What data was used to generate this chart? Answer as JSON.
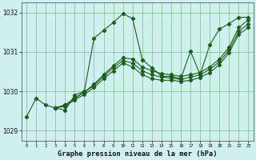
{
  "xlabel": "Graphe pression niveau de la mer (hPa)",
  "xlim": [
    -0.5,
    23.5
  ],
  "ylim": [
    1028.75,
    1032.25
  ],
  "yticks": [
    1029,
    1030,
    1031,
    1032
  ],
  "xticks": [
    0,
    1,
    2,
    3,
    4,
    5,
    6,
    7,
    8,
    9,
    10,
    11,
    12,
    13,
    14,
    15,
    16,
    17,
    18,
    19,
    20,
    21,
    22,
    23
  ],
  "bg_color": "#d0f0f0",
  "grid_color": "#5aaa5a",
  "line_color": "#1a5f1a",
  "series1_x": [
    0,
    1,
    2,
    3,
    4,
    5,
    6,
    7,
    8,
    9,
    10,
    11,
    12,
    13,
    14,
    15,
    16,
    17,
    18,
    19,
    20,
    21,
    22,
    23
  ],
  "series1_y": [
    1029.35,
    1029.82,
    1029.65,
    1029.58,
    1029.52,
    1029.9,
    1030.0,
    1031.35,
    1031.55,
    1031.75,
    1031.97,
    1031.85,
    1030.8,
    1030.6,
    1030.38,
    1030.38,
    1030.32,
    1031.02,
    1030.42,
    1031.18,
    1031.58,
    1031.72,
    1031.88,
    1031.88
  ],
  "series2_x": [
    3,
    4,
    5,
    6,
    7,
    8,
    9,
    10,
    11,
    12,
    13,
    14,
    15,
    16,
    17,
    18,
    19,
    20,
    21,
    22,
    23
  ],
  "series2_y": [
    1029.58,
    1029.65,
    1029.82,
    1029.98,
    1030.18,
    1030.42,
    1030.65,
    1030.85,
    1030.82,
    1030.62,
    1030.52,
    1030.45,
    1030.42,
    1030.38,
    1030.42,
    1030.48,
    1030.62,
    1030.82,
    1031.12,
    1031.62,
    1031.82
  ],
  "series3_x": [
    3,
    4,
    5,
    6,
    7,
    8,
    9,
    10,
    11,
    12,
    13,
    14,
    15,
    16,
    17,
    18,
    19,
    20,
    21,
    22,
    23
  ],
  "series3_y": [
    1029.58,
    1029.65,
    1029.82,
    1029.98,
    1030.15,
    1030.38,
    1030.6,
    1030.78,
    1030.72,
    1030.52,
    1030.42,
    1030.36,
    1030.34,
    1030.3,
    1030.36,
    1030.42,
    1030.56,
    1030.75,
    1031.05,
    1031.52,
    1031.72
  ],
  "series4_x": [
    3,
    4,
    5,
    6,
    7,
    8,
    9,
    10,
    11,
    12,
    13,
    14,
    15,
    16,
    17,
    18,
    19,
    20,
    21,
    22,
    23
  ],
  "series4_y": [
    1029.58,
    1029.62,
    1029.78,
    1029.92,
    1030.1,
    1030.32,
    1030.52,
    1030.72,
    1030.62,
    1030.42,
    1030.32,
    1030.28,
    1030.28,
    1030.25,
    1030.28,
    1030.35,
    1030.48,
    1030.68,
    1030.98,
    1031.45,
    1031.62
  ]
}
